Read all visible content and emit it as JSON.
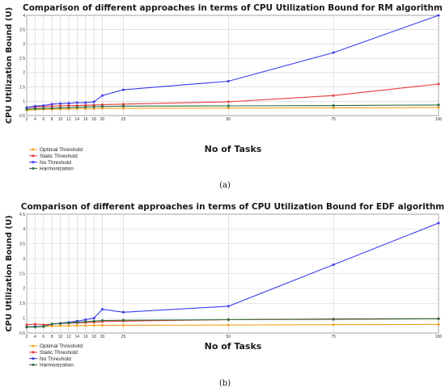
{
  "chart_data": [
    {
      "type": "line",
      "caption": "(a)",
      "title": "Comparison of different approaches in terms of CPU Utilization Bound for RM algorithm",
      "xlabel": "No of Tasks",
      "ylabel": "CPU Utilization Bound (U)",
      "x": [
        2,
        4,
        6,
        8,
        10,
        12,
        14,
        16,
        18,
        20,
        25,
        50,
        75,
        100
      ],
      "xlim": [
        2,
        100
      ],
      "ylim": [
        0.5,
        4
      ],
      "yticks": [
        0.5,
        1,
        1.5,
        2,
        2.5,
        3,
        3.5,
        4
      ],
      "grid": true,
      "legend_position": "bottom-left",
      "series": [
        {
          "name": "Optimal Threshold",
          "color": "#f5a020",
          "marker": "circle",
          "values": [
            0.69,
            0.71,
            0.72,
            0.72,
            0.73,
            0.73,
            0.74,
            0.74,
            0.74,
            0.75,
            0.75,
            0.76,
            0.77,
            0.78
          ]
        },
        {
          "name": "Static Threshold",
          "color": "#e8393b",
          "marker": "circle",
          "values": [
            0.78,
            0.8,
            0.82,
            0.83,
            0.84,
            0.85,
            0.85,
            0.86,
            0.87,
            0.88,
            0.9,
            0.98,
            1.2,
            1.6
          ]
        },
        {
          "name": "No Threshold",
          "color": "#3a3aee",
          "marker": "circle",
          "values": [
            0.78,
            0.83,
            0.85,
            0.9,
            0.92,
            0.93,
            0.95,
            0.95,
            0.98,
            1.2,
            1.4,
            1.7,
            2.7,
            4.0
          ]
        },
        {
          "name": "Harmonization",
          "color": "#2e6b3c",
          "marker": "star",
          "values": [
            0.72,
            0.74,
            0.75,
            0.76,
            0.77,
            0.78,
            0.79,
            0.8,
            0.81,
            0.82,
            0.83,
            0.84,
            0.85,
            0.87
          ]
        }
      ]
    },
    {
      "type": "line",
      "caption": "(b)",
      "title": "Comparison of different approaches in terms of CPU Utilization Bound for EDF algorithm",
      "xlabel": "No of Tasks",
      "ylabel": "CPU Utilization Bound (U)",
      "x": [
        2,
        4,
        6,
        8,
        10,
        12,
        14,
        16,
        18,
        20,
        25,
        50,
        75,
        100
      ],
      "xlim": [
        2,
        100
      ],
      "ylim": [
        0.5,
        4.5
      ],
      "yticks": [
        0.5,
        1,
        1.5,
        2,
        2.5,
        3,
        3.5,
        4,
        4.5
      ],
      "grid": true,
      "legend_position": "bottom-left",
      "series": [
        {
          "name": "Optimal Threshold",
          "color": "#f5a020",
          "marker": "circle",
          "values": [
            0.7,
            0.72,
            0.72,
            0.73,
            0.74,
            0.74,
            0.75,
            0.75,
            0.76,
            0.76,
            0.76,
            0.77,
            0.78,
            0.79
          ]
        },
        {
          "name": "Static Threshold",
          "color": "#e8393b",
          "marker": "circle",
          "values": [
            0.78,
            0.8,
            0.78,
            0.8,
            0.82,
            0.83,
            0.84,
            0.85,
            0.86,
            0.88,
            0.9,
            0.95,
            0.97,
            0.98
          ]
        },
        {
          "name": "No Threshold",
          "color": "#3a3aee",
          "marker": "circle",
          "values": [
            0.7,
            0.72,
            0.72,
            0.8,
            0.83,
            0.86,
            0.9,
            0.95,
            1.0,
            1.3,
            1.2,
            1.4,
            2.8,
            4.2
          ]
        },
        {
          "name": "Harmonization",
          "color": "#2e6b3c",
          "marker": "star",
          "values": [
            0.7,
            0.7,
            0.72,
            0.8,
            0.82,
            0.84,
            0.86,
            0.88,
            0.9,
            0.92,
            0.93,
            0.95,
            0.96,
            0.98
          ]
        }
      ]
    }
  ]
}
